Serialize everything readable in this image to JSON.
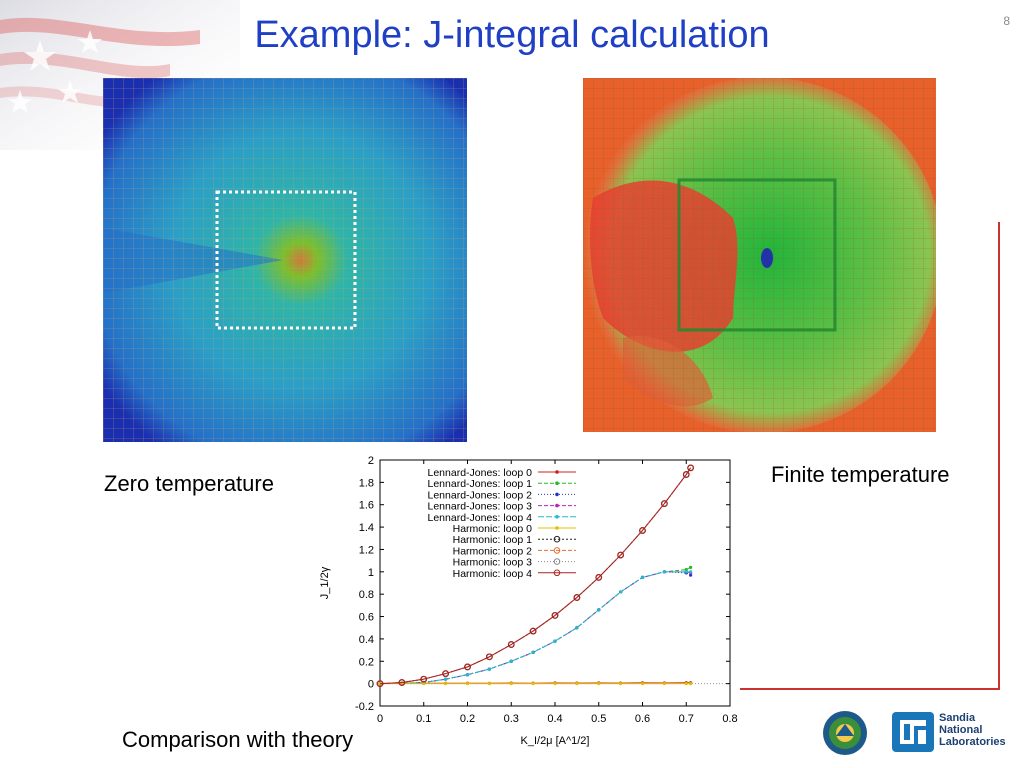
{
  "slide": {
    "title": "Example: J-integral calculation",
    "page_number": "8"
  },
  "captions": {
    "zero": "Zero temperature",
    "finite": "Finite temperature",
    "comparison": "Comparison with theory"
  },
  "logos": {
    "sandia": [
      "Sandia",
      "National",
      "Laboratories"
    ]
  },
  "colors": {
    "title": "#1f3fc4",
    "zero_bg": "#1a2fb0",
    "finite_bg": "#e8602a",
    "accent_line": "#c9322f"
  },
  "chart_data": {
    "type": "line",
    "xlabel": "K_I/2μ [A^1/2]",
    "ylabel": "J_1/2γ",
    "xlim": [
      0,
      0.8
    ],
    "ylim": [
      -0.2,
      2
    ],
    "xticks": [
      "0",
      "0.1",
      "0.2",
      "0.3",
      "0.4",
      "0.5",
      "0.6",
      "0.7",
      "0.8"
    ],
    "yticks": [
      "-0.2",
      "0",
      "0.2",
      "0.4",
      "0.6",
      "0.8",
      "1",
      "1.2",
      "1.4",
      "1.6",
      "1.8",
      "2"
    ],
    "legend_position": "top-left",
    "series": [
      {
        "name": "Lennard-Jones: loop 0",
        "color": "#cc2020",
        "x": [
          0,
          0.05,
          0.1,
          0.15,
          0.2,
          0.25,
          0.3,
          0.35,
          0.4,
          0.45,
          0.5,
          0.55,
          0.6,
          0.65,
          0.7,
          0.71
        ],
        "y": [
          0,
          0.005,
          0.004,
          0.003,
          0.004,
          0.003,
          0.005,
          0.004,
          0.006,
          0.005,
          0.006,
          0.005,
          0.007,
          0.006,
          0.008,
          0.008
        ]
      },
      {
        "name": "Lennard-Jones: loop 1",
        "color": "#22bb22",
        "x": [
          0,
          0.05,
          0.1,
          0.15,
          0.2,
          0.25,
          0.3,
          0.35,
          0.4,
          0.45,
          0.5,
          0.55,
          0.6,
          0.65,
          0.7,
          0.71
        ],
        "y": [
          0,
          0.003,
          0.01,
          0.04,
          0.08,
          0.13,
          0.2,
          0.28,
          0.38,
          0.5,
          0.66,
          0.82,
          0.95,
          1.0,
          1.02,
          1.04
        ]
      },
      {
        "name": "Lennard-Jones: loop 2",
        "color": "#2233cc",
        "x": [
          0,
          0.05,
          0.1,
          0.15,
          0.2,
          0.25,
          0.3,
          0.35,
          0.4,
          0.45,
          0.5,
          0.55,
          0.6,
          0.65,
          0.7,
          0.71
        ],
        "y": [
          0,
          0.003,
          0.01,
          0.04,
          0.08,
          0.13,
          0.2,
          0.28,
          0.38,
          0.5,
          0.66,
          0.82,
          0.95,
          1.0,
          0.99,
          0.97
        ]
      },
      {
        "name": "Lennard-Jones: loop 3",
        "color": "#bb22bb",
        "x": [
          0,
          0.05,
          0.1,
          0.15,
          0.2,
          0.25,
          0.3,
          0.35,
          0.4,
          0.45,
          0.5,
          0.55,
          0.6,
          0.65,
          0.7,
          0.71
        ],
        "y": [
          0,
          0.003,
          0.01,
          0.04,
          0.08,
          0.13,
          0.2,
          0.28,
          0.38,
          0.5,
          0.66,
          0.82,
          0.95,
          1.0,
          1.0,
          0.99
        ]
      },
      {
        "name": "Lennard-Jones: loop 4",
        "color": "#22bbcc",
        "x": [
          0,
          0.05,
          0.1,
          0.15,
          0.2,
          0.25,
          0.3,
          0.35,
          0.4,
          0.45,
          0.5,
          0.55,
          0.6,
          0.65,
          0.7,
          0.71
        ],
        "y": [
          0,
          0.003,
          0.01,
          0.04,
          0.08,
          0.13,
          0.2,
          0.28,
          0.38,
          0.5,
          0.66,
          0.82,
          0.95,
          1.0,
          1.0,
          1.0
        ]
      },
      {
        "name": "Harmonic: loop 0",
        "color": "#e0c000",
        "x": [
          0,
          0.05,
          0.1,
          0.15,
          0.2,
          0.25,
          0.3,
          0.35,
          0.4,
          0.45,
          0.5,
          0.55,
          0.6,
          0.65,
          0.7,
          0.71
        ],
        "y": [
          0,
          0,
          0,
          0,
          0,
          0,
          0,
          0,
          0,
          0,
          0,
          0,
          0,
          0,
          0,
          0
        ]
      },
      {
        "name": "Harmonic: loop 1",
        "color": "#222222",
        "x": [
          0,
          0.05,
          0.1,
          0.15,
          0.2,
          0.25,
          0.3,
          0.35,
          0.4,
          0.45,
          0.5,
          0.55,
          0.6,
          0.65,
          0.7,
          0.71
        ],
        "y": [
          0,
          0.01,
          0.04,
          0.09,
          0.15,
          0.24,
          0.35,
          0.47,
          0.61,
          0.77,
          0.95,
          1.15,
          1.37,
          1.61,
          1.87,
          1.93
        ]
      },
      {
        "name": "Harmonic: loop 2",
        "color": "#e07030",
        "x": [
          0,
          0.05,
          0.1,
          0.15,
          0.2,
          0.25,
          0.3,
          0.35,
          0.4,
          0.45,
          0.5,
          0.55,
          0.6,
          0.65,
          0.7,
          0.71
        ],
        "y": [
          0,
          0.01,
          0.04,
          0.09,
          0.15,
          0.24,
          0.35,
          0.47,
          0.61,
          0.77,
          0.95,
          1.15,
          1.37,
          1.61,
          1.87,
          1.93
        ]
      },
      {
        "name": "Harmonic: loop 3",
        "color": "#888888",
        "x": [
          0,
          0.05,
          0.1,
          0.15,
          0.2,
          0.25,
          0.3,
          0.35,
          0.4,
          0.45,
          0.5,
          0.55,
          0.6,
          0.65,
          0.7,
          0.71
        ],
        "y": [
          0,
          0.01,
          0.04,
          0.09,
          0.15,
          0.24,
          0.35,
          0.47,
          0.61,
          0.77,
          0.95,
          1.15,
          1.37,
          1.61,
          1.87,
          1.93
        ]
      },
      {
        "name": "Harmonic: loop 4",
        "color": "#aa2222",
        "x": [
          0,
          0.05,
          0.1,
          0.15,
          0.2,
          0.25,
          0.3,
          0.35,
          0.4,
          0.45,
          0.5,
          0.55,
          0.6,
          0.65,
          0.7,
          0.71
        ],
        "y": [
          0,
          0.01,
          0.04,
          0.09,
          0.15,
          0.24,
          0.35,
          0.47,
          0.61,
          0.77,
          0.95,
          1.15,
          1.37,
          1.61,
          1.87,
          1.93
        ]
      }
    ]
  }
}
